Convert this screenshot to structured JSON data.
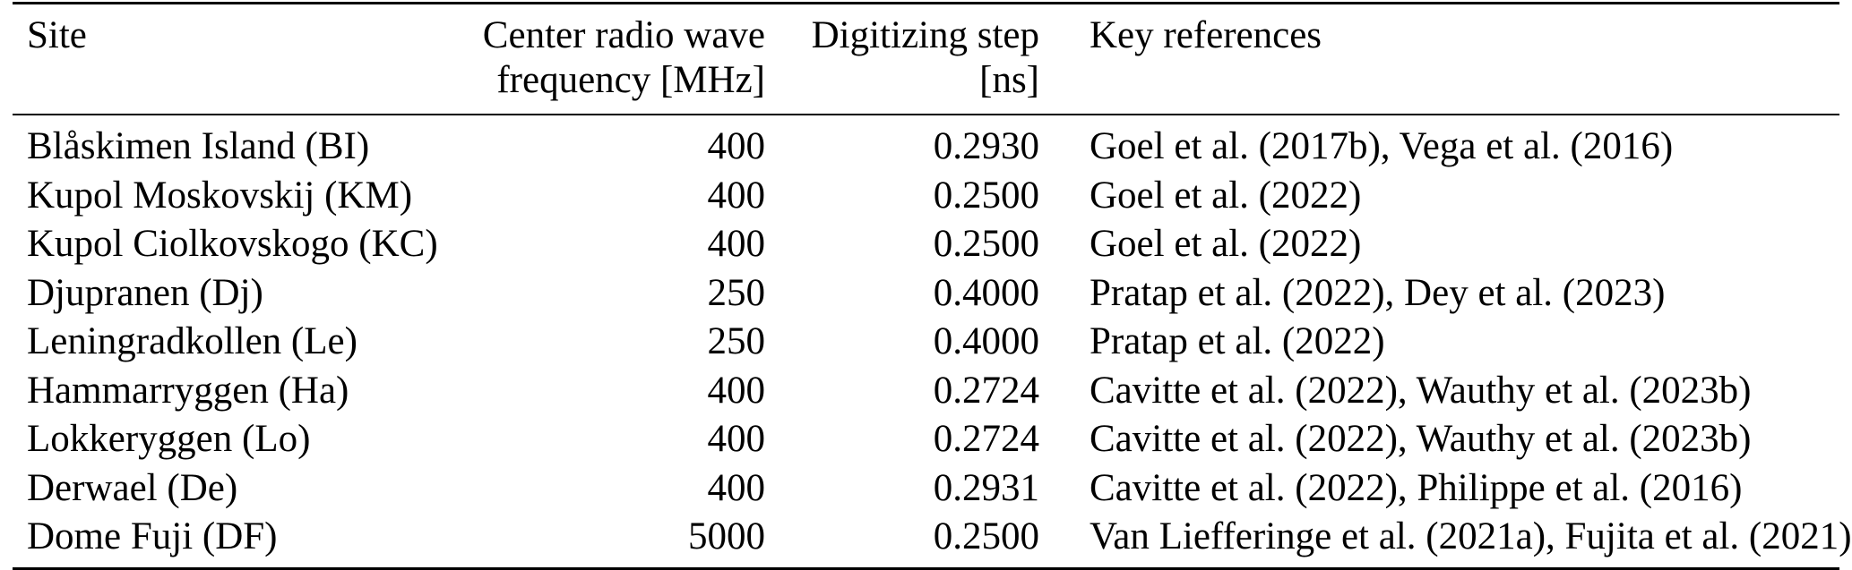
{
  "table": {
    "headers": [
      {
        "label": "Site"
      },
      {
        "line1": "Center radio wave",
        "line2": "frequency [MHz]"
      },
      {
        "line1": "Digitizing step",
        "line2": "[ns]"
      },
      {
        "label": "Key references"
      }
    ],
    "rows": [
      {
        "site": "Blåskimen Island (BI)",
        "frequency": "400",
        "step": "0.2930",
        "references": "Goel et al. (2017b), Vega et al. (2016)"
      },
      {
        "site": "Kupol Moskovskij (KM)",
        "frequency": "400",
        "step": "0.2500",
        "references": "Goel et al. (2022)"
      },
      {
        "site": "Kupol Ciolkovskogo (KC)",
        "frequency": "400",
        "step": "0.2500",
        "references": "Goel et al. (2022)"
      },
      {
        "site": "Djupranen (Dj)",
        "frequency": "250",
        "step": "0.4000",
        "references": "Pratap et al. (2022), Dey et al. (2023)"
      },
      {
        "site": "Leningradkollen (Le)",
        "frequency": "250",
        "step": "0.4000",
        "references": "Pratap et al. (2022)"
      },
      {
        "site": "Hammarryggen (Ha)",
        "frequency": "400",
        "step": "0.2724",
        "references": "Cavitte et al. (2022), Wauthy et al. (2023b)"
      },
      {
        "site": "Lokkeryggen (Lo)",
        "frequency": "400",
        "step": "0.2724",
        "references": "Cavitte et al. (2022), Wauthy et al. (2023b)"
      },
      {
        "site": "Derwael (De)",
        "frequency": "400",
        "step": "0.2931",
        "references": "Cavitte et al. (2022), Philippe et al. (2016)"
      },
      {
        "site": "Dome Fuji (DF)",
        "frequency": "5000",
        "step": "0.2500",
        "references": "Van Liefferinge et al. (2021a), Fujita et al. (2021)"
      }
    ]
  }
}
